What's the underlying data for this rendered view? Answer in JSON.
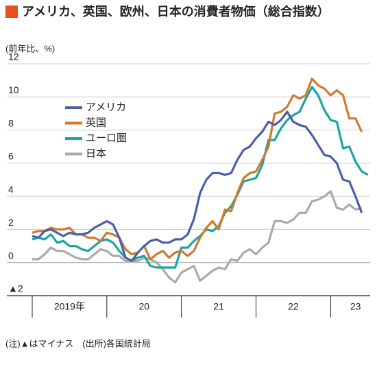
{
  "chart_data": {
    "type": "line",
    "title": "アメリカ、英国、欧州、日本の消費者物価（総合指数）",
    "subtitle": "(前年比、%)",
    "note": "(注)▲はマイナス　(出所)各国統計局",
    "categories": [
      null,
      null,
      null,
      null,
      null,
      null,
      "2019年",
      null,
      null,
      null,
      null,
      null,
      null,
      null,
      null,
      null,
      null,
      null,
      "20",
      null,
      null,
      null,
      null,
      null,
      null,
      null,
      null,
      null,
      null,
      null,
      "21",
      null,
      null,
      null,
      null,
      null,
      null,
      null,
      null,
      null,
      null,
      null,
      "22",
      null,
      null,
      null,
      null,
      null,
      null,
      null,
      null,
      null,
      "23",
      null,
      null
    ],
    "ylim": [
      -2,
      12
    ],
    "yticks": [
      {
        "value": -2,
        "label": "▲2"
      },
      0,
      2,
      4,
      6,
      8,
      10,
      12
    ],
    "grid": true,
    "legend": "upper-left",
    "series": [
      {
        "name": "アメリカ",
        "color": "#4a5fa8",
        "values": [
          1.6,
          1.5,
          1.9,
          2.0,
          1.8,
          1.6,
          1.8,
          1.7,
          1.7,
          1.8,
          2.1,
          2.3,
          2.5,
          2.3,
          1.5,
          0.3,
          0.1,
          0.6,
          1.0,
          1.3,
          1.4,
          1.2,
          1.2,
          1.4,
          1.4,
          1.7,
          2.6,
          4.2,
          5.0,
          5.4,
          5.4,
          5.3,
          5.4,
          6.2,
          6.8,
          7.0,
          7.5,
          7.9,
          8.5,
          8.3,
          8.6,
          9.1,
          8.5,
          8.3,
          8.2,
          7.7,
          7.1,
          6.5,
          6.4,
          6.0,
          5.0,
          4.9,
          4.0,
          3.0,
          null
        ]
      },
      {
        "name": "英国",
        "color": "#d07a2e",
        "values": [
          1.8,
          1.9,
          1.9,
          2.1,
          2.0,
          2.0,
          2.1,
          1.7,
          1.7,
          1.5,
          1.5,
          1.3,
          1.8,
          1.7,
          1.5,
          0.8,
          0.5,
          0.6,
          1.0,
          0.2,
          0.5,
          0.7,
          0.3,
          0.6,
          0.7,
          0.4,
          0.7,
          1.5,
          2.1,
          2.5,
          2.0,
          3.2,
          3.1,
          4.2,
          5.1,
          5.4,
          5.5,
          6.2,
          7.0,
          9.0,
          9.1,
          9.4,
          10.1,
          9.9,
          10.1,
          11.1,
          10.7,
          10.5,
          10.1,
          10.4,
          10.1,
          8.7,
          8.7,
          7.9,
          null
        ]
      },
      {
        "name": "ユーロ圏",
        "color": "#1aa5a5",
        "values": [
          1.4,
          1.5,
          1.4,
          1.7,
          1.2,
          1.3,
          1.0,
          1.0,
          0.8,
          0.7,
          1.0,
          1.3,
          1.4,
          1.2,
          0.7,
          0.3,
          0.1,
          0.3,
          0.4,
          -0.2,
          -0.3,
          -0.3,
          -0.3,
          -0.3,
          0.9,
          0.9,
          1.3,
          1.6,
          2.0,
          1.9,
          2.2,
          3.0,
          3.4,
          4.1,
          4.9,
          5.0,
          5.1,
          5.9,
          7.4,
          7.4,
          8.1,
          8.6,
          8.9,
          9.1,
          9.9,
          10.6,
          10.1,
          9.2,
          8.6,
          8.5,
          6.9,
          7.0,
          6.1,
          5.5,
          5.3
        ]
      },
      {
        "name": "日本",
        "color": "#aaaaaa",
        "values": [
          0.2,
          0.2,
          0.5,
          0.9,
          0.7,
          0.7,
          0.5,
          0.3,
          0.2,
          0.2,
          0.5,
          0.8,
          0.7,
          0.4,
          0.4,
          0.1,
          0.1,
          0.1,
          0.3,
          0.2,
          0.0,
          -0.4,
          -0.9,
          -1.2,
          -0.6,
          -0.4,
          -0.2,
          -1.1,
          -0.8,
          -0.5,
          -0.3,
          -0.4,
          0.2,
          0.1,
          0.6,
          0.8,
          0.5,
          0.9,
          1.2,
          2.5,
          2.5,
          2.4,
          2.6,
          3.0,
          3.0,
          3.7,
          3.8,
          4.0,
          4.3,
          3.3,
          3.2,
          3.5,
          3.2,
          3.3,
          null
        ]
      }
    ]
  }
}
